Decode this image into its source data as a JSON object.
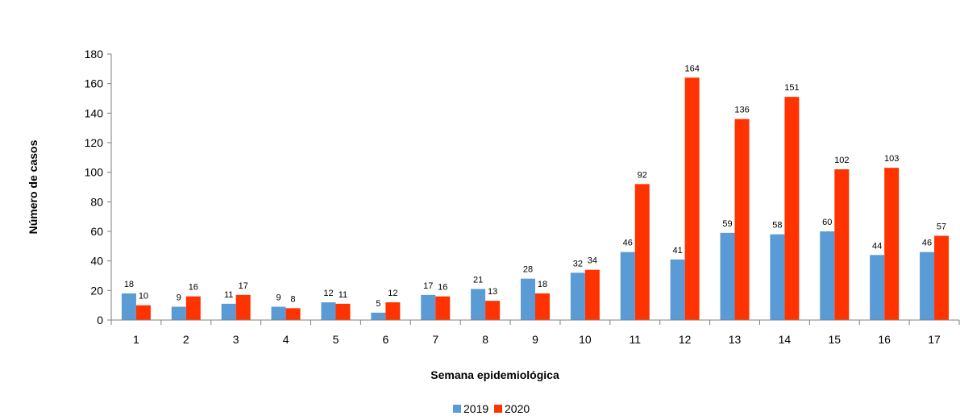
{
  "chart_data": {
    "type": "bar",
    "categories": [
      "1",
      "2",
      "3",
      "4",
      "5",
      "6",
      "7",
      "8",
      "9",
      "10",
      "11",
      "12",
      "13",
      "14",
      "15",
      "16",
      "17"
    ],
    "series": [
      {
        "name": "2019",
        "color": "#5B9BD5",
        "values": [
          18,
          9,
          11,
          9,
          12,
          5,
          17,
          21,
          28,
          32,
          46,
          41,
          59,
          58,
          60,
          44,
          46
        ]
      },
      {
        "name": "2020",
        "color": "#FF3300",
        "values": [
          10,
          16,
          17,
          8,
          11,
          12,
          16,
          13,
          18,
          34,
          92,
          164,
          136,
          151,
          102,
          103,
          57
        ]
      }
    ],
    "title": "",
    "xlabel": "Semana epidemiológica",
    "ylabel": "Número de casos",
    "ylim": [
      0,
      180
    ],
    "yticks": [
      0,
      20,
      40,
      60,
      80,
      100,
      120,
      140,
      160,
      180
    ],
    "grid": false,
    "legend": "bottom-center",
    "data_labels": true
  }
}
